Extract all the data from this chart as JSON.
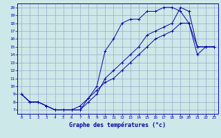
{
  "xlabel": "Graphe des températures (°c)",
  "bg_color": "#cde8e8",
  "grid_color": "#99aacc",
  "line_color": "#0000aa",
  "xlim": [
    -0.5,
    23.5
  ],
  "ylim": [
    6.5,
    20.5
  ],
  "xticks": [
    0,
    1,
    2,
    3,
    4,
    5,
    6,
    7,
    8,
    9,
    10,
    11,
    12,
    13,
    14,
    15,
    16,
    17,
    18,
    19,
    20,
    21,
    22,
    23
  ],
  "yticks": [
    7,
    8,
    9,
    10,
    11,
    12,
    13,
    14,
    15,
    16,
    17,
    18,
    19,
    20
  ],
  "line1_x": [
    0,
    1,
    2,
    3,
    4,
    5,
    6,
    7,
    8,
    9,
    10,
    11,
    12,
    13,
    14,
    15,
    16,
    17,
    18,
    19,
    20,
    21,
    22,
    23
  ],
  "line1_y": [
    9.0,
    8.0,
    8.0,
    7.5,
    7.0,
    7.0,
    7.0,
    7.0,
    8.0,
    9.0,
    11.0,
    12.0,
    13.0,
    14.0,
    15.0,
    16.5,
    17.0,
    17.5,
    18.0,
    20.0,
    19.5,
    15.0,
    15.0,
    15.0
  ],
  "line2_x": [
    0,
    1,
    2,
    3,
    4,
    5,
    6,
    7,
    8,
    9,
    10,
    11,
    12,
    13,
    14,
    15,
    16,
    17,
    18,
    19,
    20,
    21,
    22,
    23
  ],
  "line2_y": [
    9.0,
    8.0,
    8.0,
    7.5,
    7.0,
    7.0,
    7.0,
    7.5,
    8.5,
    10.0,
    14.5,
    16.0,
    18.0,
    18.5,
    18.5,
    19.5,
    19.5,
    20.0,
    20.0,
    19.5,
    18.0,
    15.0,
    15.0,
    15.0
  ],
  "line3_x": [
    0,
    1,
    2,
    3,
    4,
    5,
    6,
    7,
    8,
    9,
    10,
    11,
    12,
    13,
    14,
    15,
    16,
    17,
    18,
    19,
    20,
    21,
    22,
    23
  ],
  "line3_y": [
    9.0,
    8.0,
    8.0,
    7.5,
    7.0,
    7.0,
    7.0,
    7.0,
    8.5,
    9.5,
    10.5,
    11.0,
    12.0,
    13.0,
    14.0,
    15.0,
    16.0,
    16.5,
    17.0,
    18.0,
    18.0,
    14.0,
    15.0,
    15.0
  ]
}
